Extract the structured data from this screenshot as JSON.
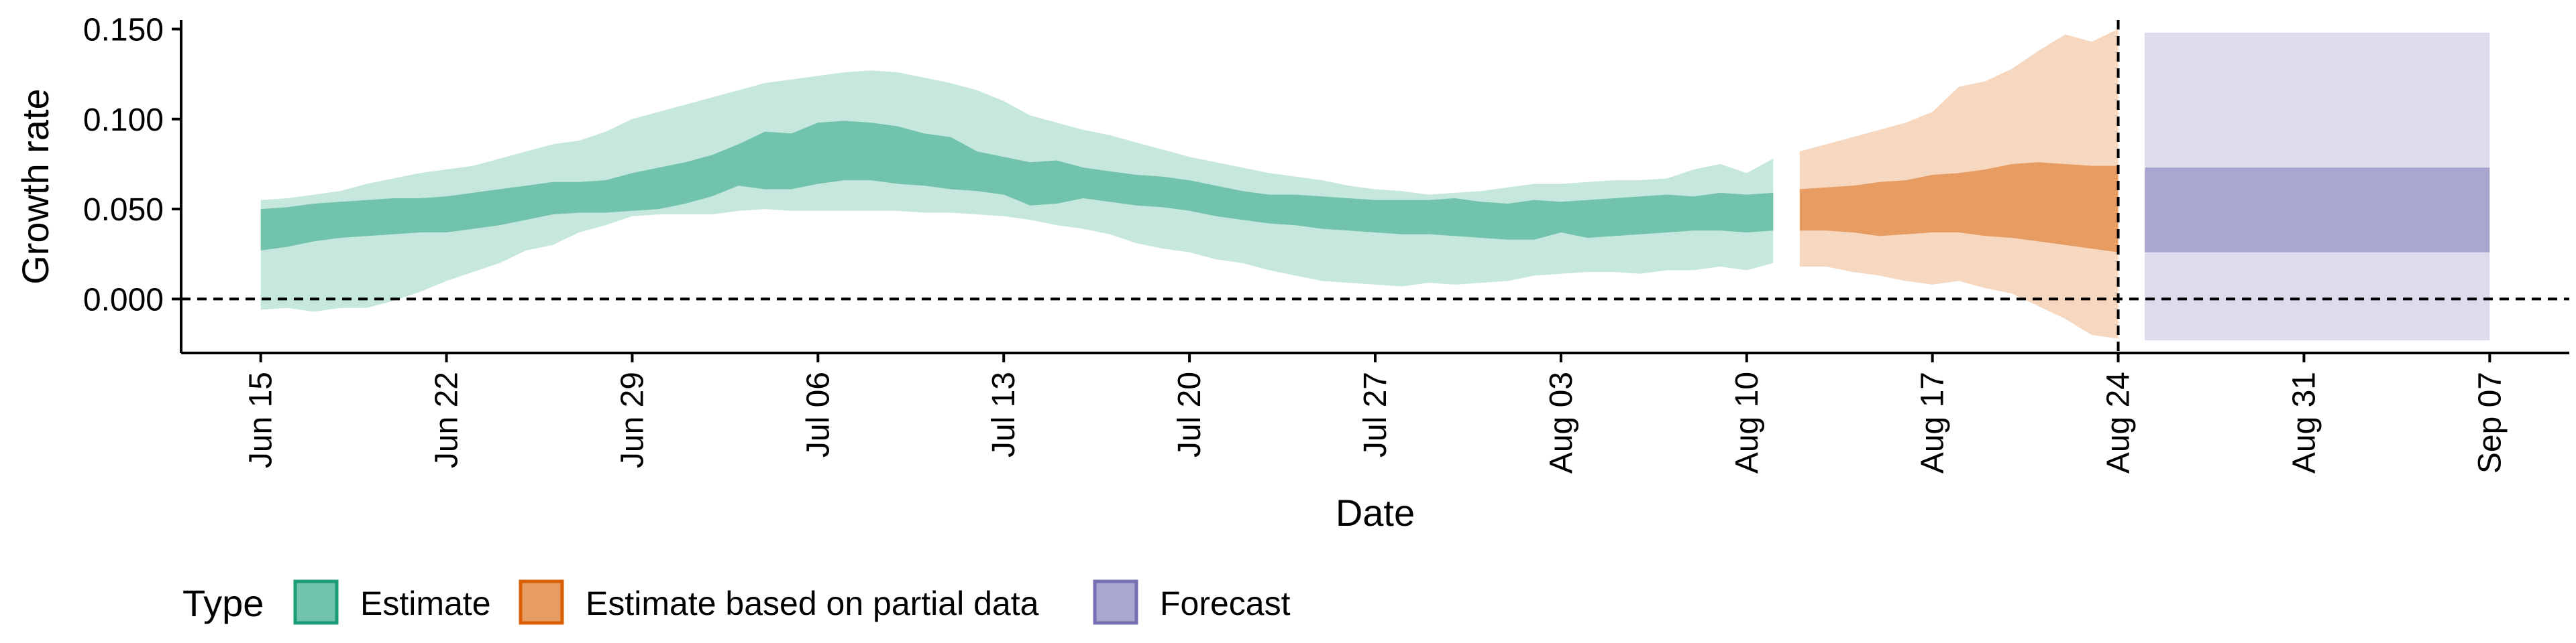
{
  "chart_data": {
    "type": "area",
    "xlabel": "Date",
    "ylabel": "Growth rate",
    "xlim": [
      "2020-06-12",
      "2020-09-10"
    ],
    "ylim": [
      -0.03,
      0.155
    ],
    "x_ticks": [
      "2020-06-15",
      "2020-06-22",
      "2020-06-29",
      "2020-07-06",
      "2020-07-13",
      "2020-07-20",
      "2020-07-27",
      "2020-08-03",
      "2020-08-10",
      "2020-08-17",
      "2020-08-24",
      "2020-08-31",
      "2020-09-07"
    ],
    "x_tick_labels": [
      "Jun 15",
      "Jun 22",
      "Jun 29",
      "Jul 06",
      "Jul 13",
      "Jul 20",
      "Jul 27",
      "Aug 03",
      "Aug 10",
      "Aug 17",
      "Aug 24",
      "Aug 31",
      "Sep 07"
    ],
    "y_ticks": [
      0,
      0.05,
      0.1,
      0.15
    ],
    "y_tick_labels": [
      "0.000",
      "0.050",
      "0.100",
      "0.150"
    ],
    "reference_lines": {
      "horizontal_y": 0,
      "vertical_x": "2020-08-24",
      "style": "dashed"
    },
    "legend": {
      "title": "Type",
      "position": "bottom",
      "entries": [
        "Estimate",
        "Estimate based on partial data",
        "Forecast"
      ]
    },
    "series": [
      {
        "name": "Estimate",
        "color": "#1b9e77",
        "x": [
          "2020-06-15",
          "2020-06-16",
          "2020-06-17",
          "2020-06-18",
          "2020-06-19",
          "2020-06-20",
          "2020-06-21",
          "2020-06-22",
          "2020-06-23",
          "2020-06-24",
          "2020-06-25",
          "2020-06-26",
          "2020-06-27",
          "2020-06-28",
          "2020-06-29",
          "2020-06-30",
          "2020-07-01",
          "2020-07-02",
          "2020-07-03",
          "2020-07-04",
          "2020-07-05",
          "2020-07-06",
          "2020-07-07",
          "2020-07-08",
          "2020-07-09",
          "2020-07-10",
          "2020-07-11",
          "2020-07-12",
          "2020-07-13",
          "2020-07-14",
          "2020-07-15",
          "2020-07-16",
          "2020-07-17",
          "2020-07-18",
          "2020-07-19",
          "2020-07-20",
          "2020-07-21",
          "2020-07-22",
          "2020-07-23",
          "2020-07-24",
          "2020-07-25",
          "2020-07-26",
          "2020-07-27",
          "2020-07-28",
          "2020-07-29",
          "2020-07-30",
          "2020-07-31",
          "2020-08-01",
          "2020-08-02",
          "2020-08-03",
          "2020-08-04",
          "2020-08-05",
          "2020-08-06",
          "2020-08-07",
          "2020-08-08",
          "2020-08-09",
          "2020-08-10",
          "2020-08-11"
        ],
        "lower_90": [
          -0.006,
          -0.005,
          -0.007,
          -0.005,
          -0.005,
          -0.001,
          0.004,
          0.01,
          0.015,
          0.02,
          0.027,
          0.03,
          0.037,
          0.041,
          0.046,
          0.047,
          0.047,
          0.047,
          0.049,
          0.05,
          0.049,
          0.049,
          0.049,
          0.049,
          0.049,
          0.048,
          0.048,
          0.047,
          0.046,
          0.044,
          0.041,
          0.039,
          0.036,
          0.031,
          0.028,
          0.026,
          0.022,
          0.02,
          0.016,
          0.013,
          0.01,
          0.009,
          0.008,
          0.007,
          0.009,
          0.008,
          0.009,
          0.01,
          0.013,
          0.014,
          0.015,
          0.015,
          0.014,
          0.016,
          0.016,
          0.018,
          0.016,
          0.02
        ],
        "lower_50": [
          0.027,
          0.029,
          0.032,
          0.034,
          0.035,
          0.036,
          0.037,
          0.037,
          0.039,
          0.041,
          0.044,
          0.047,
          0.048,
          0.048,
          0.049,
          0.05,
          0.053,
          0.057,
          0.063,
          0.061,
          0.061,
          0.064,
          0.066,
          0.066,
          0.064,
          0.063,
          0.061,
          0.06,
          0.058,
          0.052,
          0.053,
          0.056,
          0.054,
          0.052,
          0.051,
          0.049,
          0.046,
          0.044,
          0.042,
          0.041,
          0.039,
          0.038,
          0.037,
          0.036,
          0.036,
          0.035,
          0.034,
          0.033,
          0.033,
          0.037,
          0.034,
          0.035,
          0.036,
          0.037,
          0.038,
          0.038,
          0.037,
          0.038
        ],
        "median": [
          0.039,
          0.04,
          0.042,
          0.043,
          0.044,
          0.045,
          0.046,
          0.047,
          0.049,
          0.051,
          0.053,
          0.055,
          0.056,
          0.057,
          0.059,
          0.061,
          0.064,
          0.068,
          0.073,
          0.072,
          0.073,
          0.075,
          0.077,
          0.077,
          0.076,
          0.074,
          0.072,
          0.07,
          0.068,
          0.063,
          0.064,
          0.065,
          0.063,
          0.061,
          0.059,
          0.057,
          0.055,
          0.053,
          0.052,
          0.051,
          0.05,
          0.049,
          0.049,
          0.049,
          0.048,
          0.047,
          0.047,
          0.046,
          0.045,
          0.047,
          0.045,
          0.046,
          0.047,
          0.048,
          0.048,
          0.048,
          0.048,
          0.048
        ],
        "upper_50": [
          0.05,
          0.051,
          0.053,
          0.054,
          0.055,
          0.056,
          0.056,
          0.057,
          0.059,
          0.061,
          0.063,
          0.065,
          0.065,
          0.066,
          0.07,
          0.073,
          0.076,
          0.08,
          0.086,
          0.093,
          0.092,
          0.098,
          0.099,
          0.098,
          0.096,
          0.092,
          0.09,
          0.082,
          0.079,
          0.076,
          0.077,
          0.073,
          0.071,
          0.069,
          0.068,
          0.066,
          0.063,
          0.06,
          0.058,
          0.058,
          0.057,
          0.056,
          0.055,
          0.055,
          0.055,
          0.056,
          0.054,
          0.053,
          0.055,
          0.054,
          0.055,
          0.056,
          0.057,
          0.058,
          0.057,
          0.059,
          0.058,
          0.059
        ],
        "upper_90": [
          0.055,
          0.056,
          0.058,
          0.06,
          0.064,
          0.067,
          0.07,
          0.072,
          0.074,
          0.078,
          0.082,
          0.086,
          0.088,
          0.093,
          0.1,
          0.104,
          0.108,
          0.112,
          0.116,
          0.12,
          0.122,
          0.124,
          0.126,
          0.127,
          0.126,
          0.123,
          0.12,
          0.116,
          0.11,
          0.102,
          0.098,
          0.094,
          0.091,
          0.087,
          0.083,
          0.079,
          0.076,
          0.073,
          0.07,
          0.068,
          0.066,
          0.063,
          0.061,
          0.06,
          0.058,
          0.059,
          0.06,
          0.062,
          0.064,
          0.064,
          0.065,
          0.066,
          0.066,
          0.067,
          0.072,
          0.075,
          0.07,
          0.078
        ]
      },
      {
        "name": "Estimate based on partial data",
        "color": "#d95f02",
        "x": [
          "2020-08-12",
          "2020-08-13",
          "2020-08-14",
          "2020-08-15",
          "2020-08-16",
          "2020-08-17",
          "2020-08-18",
          "2020-08-19",
          "2020-08-20",
          "2020-08-21",
          "2020-08-22",
          "2020-08-23",
          "2020-08-24"
        ],
        "lower_90": [
          0.018,
          0.018,
          0.015,
          0.013,
          0.01,
          0.008,
          0.01,
          0.006,
          0.003,
          -0.004,
          -0.011,
          -0.02,
          -0.022
        ],
        "lower_50": [
          0.038,
          0.038,
          0.037,
          0.035,
          0.036,
          0.037,
          0.037,
          0.035,
          0.034,
          0.032,
          0.03,
          0.028,
          0.026
        ],
        "median": [
          0.051,
          0.052,
          0.053,
          0.053,
          0.053,
          0.054,
          0.055,
          0.056,
          0.056,
          0.056,
          0.054,
          0.052,
          0.051
        ],
        "upper_50": [
          0.061,
          0.062,
          0.063,
          0.065,
          0.066,
          0.069,
          0.07,
          0.072,
          0.075,
          0.076,
          0.075,
          0.074,
          0.074
        ],
        "upper_90": [
          0.082,
          0.086,
          0.09,
          0.094,
          0.098,
          0.104,
          0.118,
          0.121,
          0.128,
          0.138,
          0.147,
          0.143,
          0.15
        ]
      },
      {
        "name": "Forecast",
        "color": "#7570b3",
        "x": [
          "2020-08-25",
          "2020-09-07"
        ],
        "lower_90": [
          -0.023,
          -0.023
        ],
        "lower_50": [
          0.026,
          0.026
        ],
        "median": [
          0.05,
          0.05
        ],
        "upper_50": [
          0.073,
          0.073
        ],
        "upper_90": [
          0.148,
          0.148
        ]
      }
    ]
  }
}
